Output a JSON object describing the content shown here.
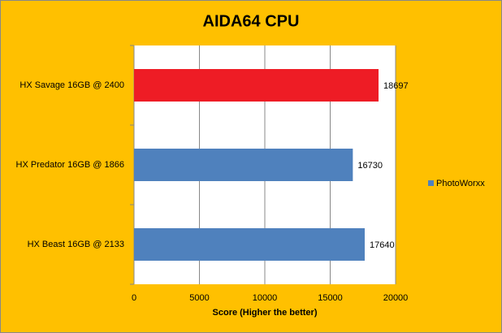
{
  "chart_data": {
    "type": "hbar",
    "title": "AIDA64 CPU",
    "categories": [
      "HX Savage 16GB @ 2400",
      "HX Predator 16GB @ 1866",
      "HX Beast 16GB @ 2133"
    ],
    "series": [
      {
        "name": "PhotoWorxx",
        "color": "#4F81BD",
        "colors": [
          "#EE1C25",
          "#4F81BD",
          "#4F81BD"
        ],
        "values": [
          18697,
          16730,
          17640
        ]
      }
    ],
    "x_label": "Score (Higher the better)",
    "xlim": [
      0,
      20000
    ],
    "xticks": [
      0,
      5000,
      10000,
      15000,
      20000
    ],
    "grid": true,
    "legend": "right"
  }
}
